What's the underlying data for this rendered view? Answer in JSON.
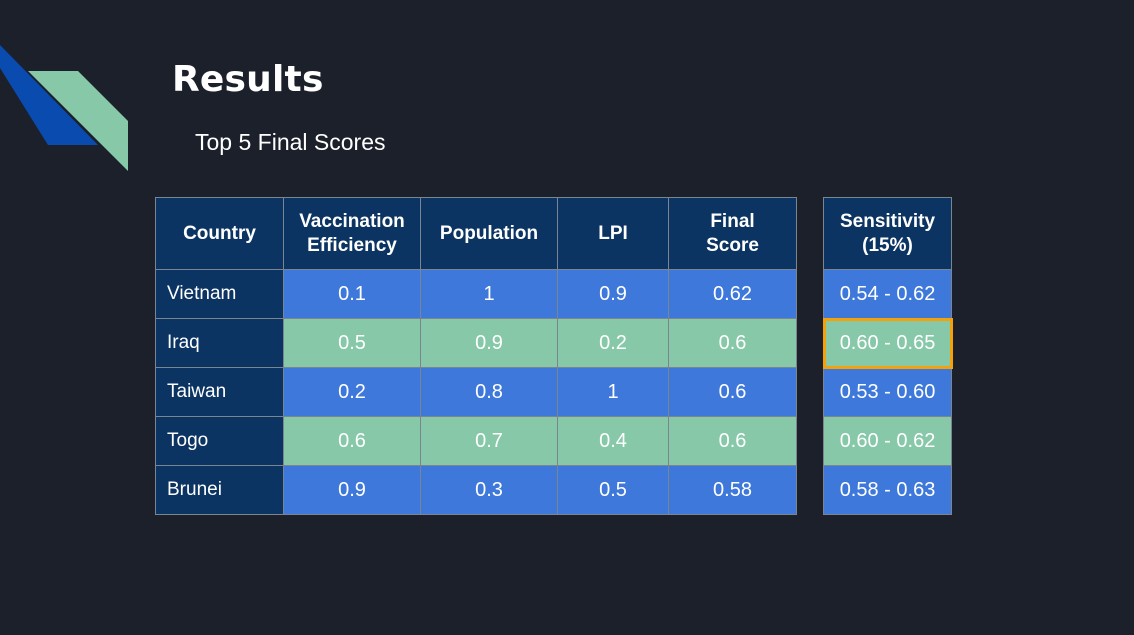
{
  "slide": {
    "title": "Results",
    "subtitle": "Top 5 Final Scores"
  },
  "colors": {
    "background": "#1c202b",
    "header_cell": "#0b3462",
    "row_blue": "#3e78db",
    "row_green": "#86c8a8",
    "highlight_border": "#f5a10a",
    "decor_blue": "#0a4bb0",
    "decor_green": "#86c8a8"
  },
  "table": {
    "headers": [
      "Country",
      "Vaccination Efficiency",
      "Population",
      "LPI",
      "Final Score"
    ],
    "rows": [
      {
        "country": "Vietnam",
        "vaccination_efficiency": "0.1",
        "population": "1",
        "lpi": "0.9",
        "final_score": "0.62"
      },
      {
        "country": "Iraq",
        "vaccination_efficiency": "0.5",
        "population": "0.9",
        "lpi": "0.2",
        "final_score": "0.6"
      },
      {
        "country": "Taiwan",
        "vaccination_efficiency": "0.2",
        "population": "0.8",
        "lpi": "1",
        "final_score": "0.6"
      },
      {
        "country": "Togo",
        "vaccination_efficiency": "0.6",
        "population": "0.7",
        "lpi": "0.4",
        "final_score": "0.6"
      },
      {
        "country": "Brunei",
        "vaccination_efficiency": "0.9",
        "population": "0.3",
        "lpi": "0.5",
        "final_score": "0.58"
      }
    ]
  },
  "sensitivity": {
    "header": "Sensitivity (15%)",
    "values": [
      "0.54 - 0.62",
      "0.60 - 0.65",
      "0.53 - 0.60",
      "0.60 - 0.62",
      "0.58 - 0.63"
    ],
    "highlighted_row": "Iraq"
  }
}
